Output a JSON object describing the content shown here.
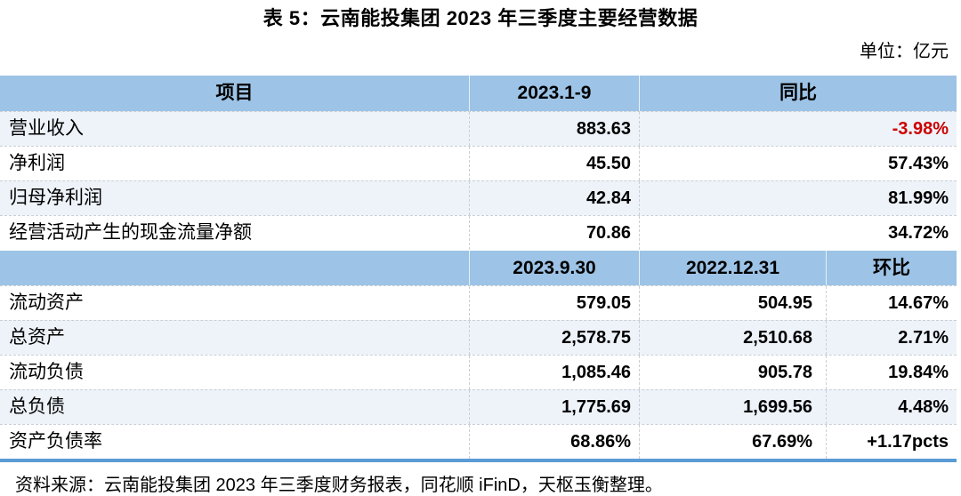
{
  "title": "表 5：云南能投集团 2023 年三季度主要经营数据",
  "unit_label": "单位：亿元",
  "colors": {
    "header_bg": "#9DC3E6",
    "alt_row_bg": "#EEF3FA",
    "negative_text": "#CC0000",
    "bottom_border": "#5B9BD5"
  },
  "table": {
    "section1": {
      "headers": {
        "item": "项目",
        "period": "2023.1-9",
        "yoy": "同比"
      },
      "rows": [
        {
          "label": "营业收入",
          "value": "883.63",
          "yoy": "-3.98%"
        },
        {
          "label": "净利润",
          "value": "45.50",
          "yoy": "57.43%"
        },
        {
          "label": "归母净利润",
          "value": "42.84",
          "yoy": "81.99%"
        },
        {
          "label": "经营活动产生的现金流量净额",
          "value": "70.86",
          "yoy": "34.72%"
        }
      ]
    },
    "section2": {
      "headers": {
        "item": "",
        "date1": "2023.9.30",
        "date2": "2022.12.31",
        "qoq": "环比"
      },
      "rows": [
        {
          "label": "流动资产",
          "v1": "579.05",
          "v2": "504.95",
          "qoq": "14.67%"
        },
        {
          "label": "总资产",
          "v1": "2,578.75",
          "v2": "2,510.68",
          "qoq": "2.71%"
        },
        {
          "label": "流动负债",
          "v1": "1,085.46",
          "v2": "905.78",
          "qoq": "19.84%"
        },
        {
          "label": "总负债",
          "v1": "1,775.69",
          "v2": "1,699.56",
          "qoq": "4.48%"
        },
        {
          "label": "资产负债率",
          "v1": "68.86%",
          "v2": "67.69%",
          "qoq": "+1.17pcts"
        }
      ]
    }
  },
  "source_note": "资料来源：云南能投集团 2023 年三季度财务报表，同花顺 iFinD，天枢玉衡整理。"
}
